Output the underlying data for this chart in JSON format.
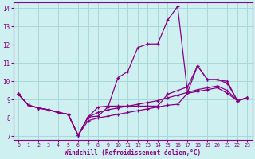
{
  "background_color": "#cff0f0",
  "grid_color": "#a8d8d8",
  "line_color": "#880088",
  "xlabel": "Windchill (Refroidissement éolien,°C)",
  "xlim": [
    -0.5,
    23.5
  ],
  "ylim": [
    6.8,
    14.3
  ],
  "yticks": [
    7,
    8,
    9,
    10,
    11,
    12,
    13,
    14
  ],
  "xticks": [
    0,
    1,
    2,
    3,
    4,
    5,
    6,
    7,
    8,
    9,
    10,
    11,
    12,
    13,
    14,
    15,
    16,
    17,
    18,
    19,
    20,
    21,
    22,
    23
  ],
  "series": [
    {
      "x": [
        0,
        1,
        2,
        3,
        4,
        5,
        6,
        7,
        8,
        9,
        10,
        11,
        12,
        13,
        14,
        15,
        16,
        17,
        18,
        19,
        20,
        21,
        22,
        23
      ],
      "y": [
        9.3,
        8.7,
        8.55,
        8.45,
        8.3,
        8.2,
        7.05,
        8.05,
        8.1,
        8.6,
        10.2,
        10.55,
        11.85,
        12.05,
        12.05,
        13.35,
        14.1,
        9.4,
        10.85,
        10.1,
        10.1,
        9.9,
        8.95,
        9.1
      ]
    },
    {
      "x": [
        0,
        1,
        2,
        3,
        4,
        5,
        6,
        7,
        8,
        9,
        10,
        11,
        12,
        13,
        14,
        15,
        16,
        17,
        18,
        19,
        20,
        21,
        22,
        23
      ],
      "y": [
        9.3,
        8.7,
        8.55,
        8.45,
        8.3,
        8.2,
        7.05,
        8.05,
        8.6,
        8.65,
        8.65,
        8.65,
        8.65,
        8.65,
        8.65,
        9.3,
        9.5,
        9.7,
        10.85,
        10.1,
        10.1,
        10.0,
        8.95,
        9.1
      ]
    },
    {
      "x": [
        0,
        1,
        2,
        3,
        4,
        5,
        6,
        7,
        8,
        9,
        10,
        11,
        12,
        13,
        14,
        15,
        16,
        17,
        18,
        19,
        20,
        21,
        22,
        23
      ],
      "y": [
        9.3,
        8.7,
        8.55,
        8.45,
        8.3,
        8.2,
        7.05,
        8.05,
        8.3,
        8.45,
        8.55,
        8.65,
        8.75,
        8.85,
        8.95,
        9.1,
        9.25,
        9.4,
        9.55,
        9.65,
        9.75,
        9.5,
        8.95,
        9.1
      ]
    },
    {
      "x": [
        0,
        1,
        2,
        3,
        4,
        5,
        6,
        7,
        8,
        9,
        10,
        11,
        12,
        13,
        14,
        15,
        16,
        17,
        18,
        19,
        20,
        21,
        22,
        23
      ],
      "y": [
        9.3,
        8.7,
        8.55,
        8.45,
        8.3,
        8.2,
        7.05,
        7.85,
        8.0,
        8.1,
        8.2,
        8.3,
        8.4,
        8.5,
        8.6,
        8.7,
        8.75,
        9.35,
        9.45,
        9.55,
        9.65,
        9.35,
        8.95,
        9.1
      ]
    }
  ]
}
